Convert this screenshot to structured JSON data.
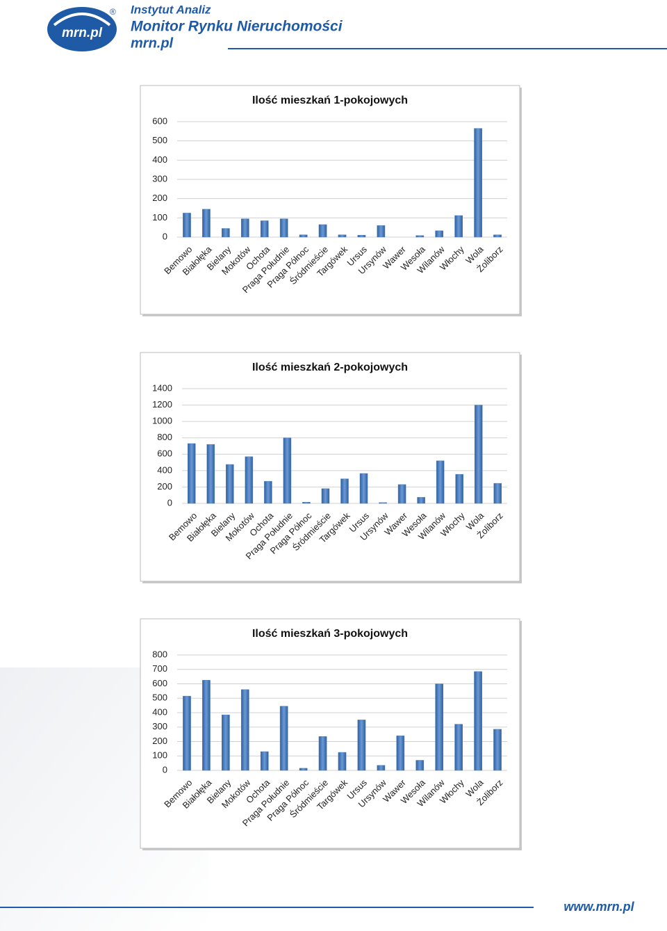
{
  "header": {
    "logo": "mrn.pl",
    "institute": "Instytut Analiz",
    "title": "Monitor Rynku Nieruchomości",
    "site": "mrn.pl",
    "mark": "®"
  },
  "footer": {
    "url": "www.mrn.pl"
  },
  "chart_data": [
    {
      "type": "bar",
      "title": "Ilość mieszkań 1-pokojowych",
      "color": "#4f81bd",
      "grid": true,
      "categories": [
        "Bemowo",
        "Białołęka",
        "Bielany",
        "Mokotów",
        "Ochota",
        "Praga Południe",
        "Praga Północ",
        "Śródmieście",
        "Targówek",
        "Ursus",
        "Ursynów",
        "Wawer",
        "Wesoła",
        "Wilanów",
        "Włochy",
        "Wola",
        "Żoliborz"
      ],
      "values": [
        125,
        145,
        45,
        95,
        85,
        95,
        12,
        65,
        12,
        10,
        60,
        0,
        8,
        33,
        112,
        565,
        12
      ],
      "ylim": [
        0,
        600
      ],
      "yticks": [
        0,
        100,
        200,
        300,
        400,
        500,
        600
      ]
    },
    {
      "type": "bar",
      "title": "Ilość mieszkań 2-pokojowych",
      "color": "#4f81bd",
      "grid": true,
      "categories": [
        "Bemowo",
        "Białołęka",
        "Bielany",
        "Mokotów",
        "Ochota",
        "Praga Południe",
        "Praga Północ",
        "Śródmieście",
        "Targówek",
        "Ursus",
        "Ursynów",
        "Wawer",
        "Wesoła",
        "Wilanów",
        "Włochy",
        "Wola",
        "Żoliborz"
      ],
      "values": [
        730,
        720,
        475,
        570,
        270,
        800,
        15,
        180,
        300,
        365,
        10,
        230,
        75,
        520,
        355,
        1200,
        245
      ],
      "ylim": [
        0,
        1400
      ],
      "yticks": [
        0,
        200,
        400,
        600,
        800,
        1000,
        1200,
        1400
      ]
    },
    {
      "type": "bar",
      "title": "Ilość mieszkań 3-pokojowych",
      "color": "#4f81bd",
      "grid": true,
      "categories": [
        "Bemowo",
        "Białołęka",
        "Bielany",
        "Mokotów",
        "Ochota",
        "Praga Południe",
        "Praga Północ",
        "Śródmieście",
        "Targówek",
        "Ursus",
        "Ursynów",
        "Wawer",
        "Wesoła",
        "Wilanów",
        "Włochy",
        "Wola",
        "Żoliborz"
      ],
      "values": [
        515,
        625,
        385,
        560,
        130,
        445,
        15,
        235,
        125,
        350,
        35,
        240,
        70,
        600,
        320,
        685,
        285
      ],
      "ylim": [
        0,
        800
      ],
      "yticks": [
        0,
        100,
        200,
        300,
        400,
        500,
        600,
        700,
        800
      ]
    }
  ]
}
